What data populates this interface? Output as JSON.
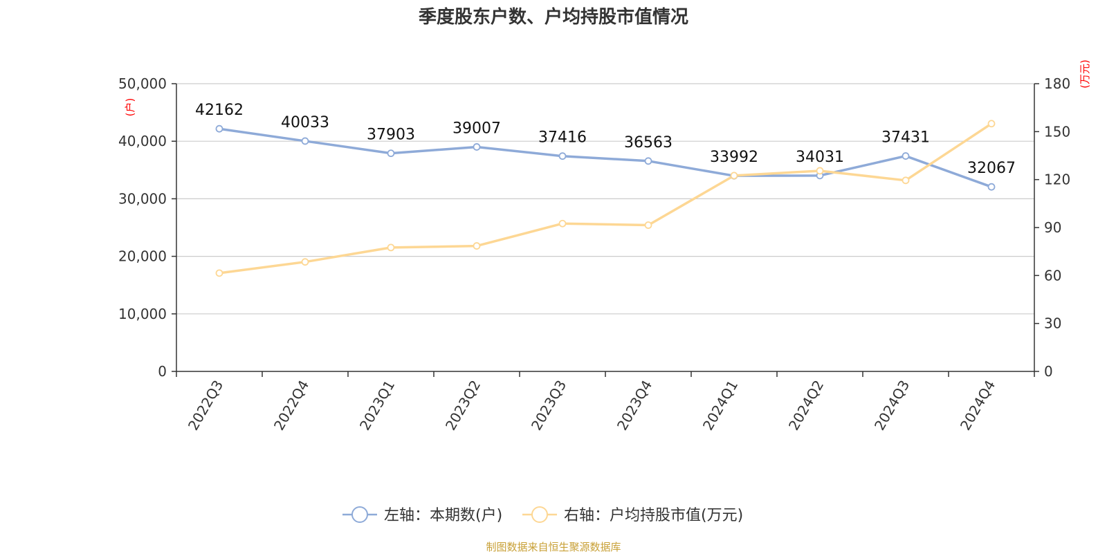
{
  "title": "季度股东户数、户均持股市值情况",
  "source": "制图数据来自恒生聚源数据库",
  "colors": {
    "left_series": "#8eaad8",
    "right_series": "#fdd794",
    "grid": "#cccccc",
    "axis": "#333333",
    "unit": "#ff0000"
  },
  "chart_data": {
    "type": "line",
    "title": "季度股东户数、户均持股市值情况",
    "categories": [
      "2022Q3",
      "2022Q4",
      "2023Q1",
      "2023Q2",
      "2023Q3",
      "2023Q4",
      "2024Q1",
      "2024Q2",
      "2024Q3",
      "2024Q4"
    ],
    "left_axis": {
      "unit": "(户)",
      "ylim": [
        0,
        50000
      ],
      "ticks": [
        0,
        10000,
        20000,
        30000,
        40000,
        50000
      ],
      "tick_labels": [
        "0",
        "10,000",
        "20,000",
        "30,000",
        "40,000",
        "50,000"
      ]
    },
    "right_axis": {
      "unit": "(万元)",
      "ylim": [
        0,
        180
      ],
      "ticks": [
        0,
        30,
        60,
        90,
        120,
        150,
        180
      ],
      "tick_labels": [
        "0",
        "30",
        "60",
        "90",
        "120",
        "150",
        "180"
      ]
    },
    "series": [
      {
        "name": "左轴：本期数(户)",
        "axis": "left",
        "color": "#8eaad8",
        "show_labels": true,
        "values": [
          42162,
          40033,
          37903,
          39007,
          37416,
          36563,
          33992,
          34031,
          37431,
          32067
        ]
      },
      {
        "name": "右轴：户均持股市值(万元)",
        "axis": "right",
        "color": "#fdd794",
        "show_labels": false,
        "values": [
          61.5,
          68.5,
          77.5,
          78.5,
          92.5,
          91.5,
          122.5,
          125.5,
          119.5,
          155
        ]
      }
    ],
    "grid": true,
    "legend": "bottom"
  }
}
